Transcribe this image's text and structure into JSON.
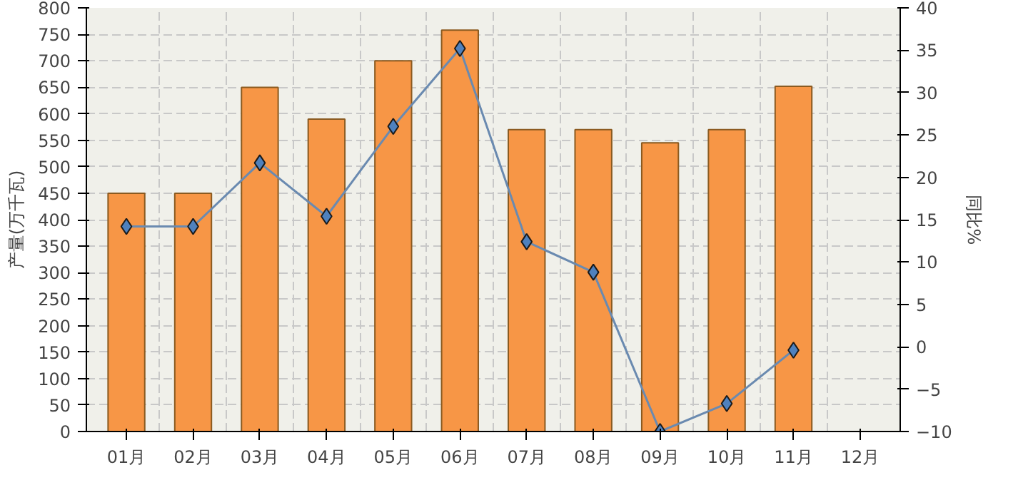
{
  "chart_data": {
    "type": "bar",
    "ylabel": "产量(万千瓦)",
    "y2label": "同比%",
    "categories": [
      "01月",
      "02月",
      "03月",
      "04月",
      "05月",
      "06月",
      "07月",
      "08月",
      "09月",
      "10月",
      "11月",
      "12月"
    ],
    "series": [
      {
        "color": "#f79646",
        "values": [
          450,
          450,
          650,
          590,
          700,
          758,
          570,
          570,
          545,
          570,
          652,
          null
        ]
      },
      {
        "type": "line",
        "axis": "y2",
        "color": "#6a8ab0",
        "marker": "diamond",
        "values": [
          14.2,
          14.2,
          21.7,
          15.4,
          26.0,
          35.2,
          12.4,
          8.8,
          -10.0,
          -6.7,
          -0.4,
          null
        ]
      }
    ],
    "ylim": [
      0,
      800
    ],
    "yticks": [
      0,
      50,
      100,
      150,
      200,
      250,
      300,
      350,
      400,
      450,
      500,
      550,
      600,
      650,
      700,
      750,
      800
    ],
    "y2lim": [
      -10,
      40
    ],
    "y2ticks": [
      -10,
      -5,
      0,
      5,
      10,
      15,
      20,
      25,
      30,
      35,
      40
    ],
    "grid": true
  }
}
